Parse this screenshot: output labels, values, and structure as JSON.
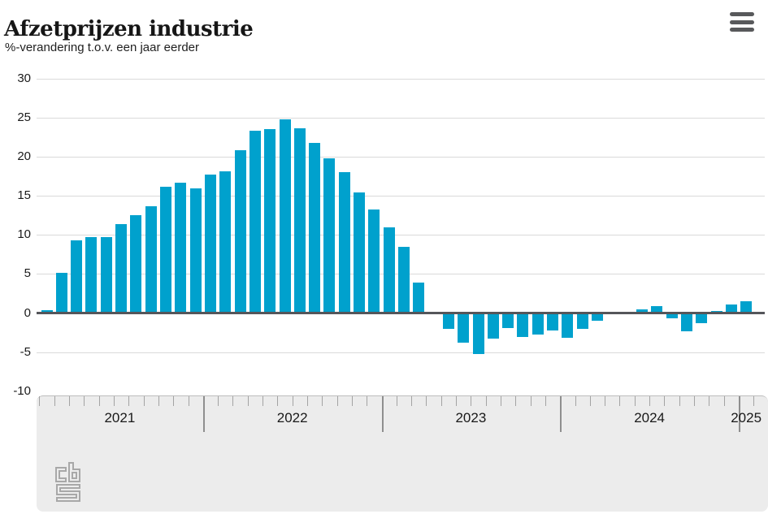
{
  "header": {
    "title": "Afzetprijzen industrie",
    "subtitle": "%-verandering t.o.v. een jaar eerder"
  },
  "menu": {
    "icon": "hamburger-menu-icon"
  },
  "footer": {
    "logo": "cbs-logo"
  },
  "colors": {
    "bar": "#00a1cd",
    "grid": "#dadada",
    "zero_line": "#55565a",
    "axis_band": "#ececec",
    "tick": "#a3a3a3",
    "year_tick": "#8f8f8f",
    "logo_gray": "#a8a8a8",
    "text": "#1a1a1a"
  },
  "chart_data": {
    "type": "bar",
    "title": "Afzetprijzen industrie",
    "subtitle": "%-verandering t.o.v. een jaar eerder",
    "unit": "%",
    "grid": true,
    "legend": false,
    "ylim": [
      -10,
      30
    ],
    "yticks": [
      30,
      25,
      20,
      15,
      10,
      5,
      0,
      -5,
      -10
    ],
    "year_labels": [
      "2021",
      "2022",
      "2023",
      "2024",
      "2025"
    ],
    "x": [
      "2021-02",
      "2021-03",
      "2021-04",
      "2021-05",
      "2021-06",
      "2021-07",
      "2021-08",
      "2021-09",
      "2021-10",
      "2021-11",
      "2021-12",
      "2022-01",
      "2022-02",
      "2022-03",
      "2022-04",
      "2022-05",
      "2022-06",
      "2022-07",
      "2022-08",
      "2022-09",
      "2022-10",
      "2022-11",
      "2022-12",
      "2023-01",
      "2023-02",
      "2023-03",
      "2023-04",
      "2023-05",
      "2023-06",
      "2023-07",
      "2023-08",
      "2023-09",
      "2023-10",
      "2023-11",
      "2023-12",
      "2024-01",
      "2024-02",
      "2024-03",
      "2024-04",
      "2024-05",
      "2024-06",
      "2024-07",
      "2024-08",
      "2024-09",
      "2024-10",
      "2024-11",
      "2024-12",
      "2025-01"
    ],
    "values": [
      0.4,
      5.1,
      9.3,
      9.7,
      9.7,
      11.4,
      12.5,
      13.6,
      16.1,
      16.7,
      15.9,
      17.7,
      18.1,
      20.8,
      23.3,
      23.5,
      24.8,
      23.6,
      21.7,
      19.8,
      18.0,
      15.4,
      13.2,
      11.0,
      8.5,
      3.9,
      0.2,
      -1.9,
      -3.7,
      -5.1,
      -3.2,
      -1.8,
      -3.0,
      -2.6,
      -2.1,
      -3.1,
      -1.9,
      -0.9,
      0.0,
      0.2,
      0.5,
      0.9,
      -0.6,
      -2.2,
      -1.2,
      0.3,
      1.1,
      1.5
    ]
  }
}
